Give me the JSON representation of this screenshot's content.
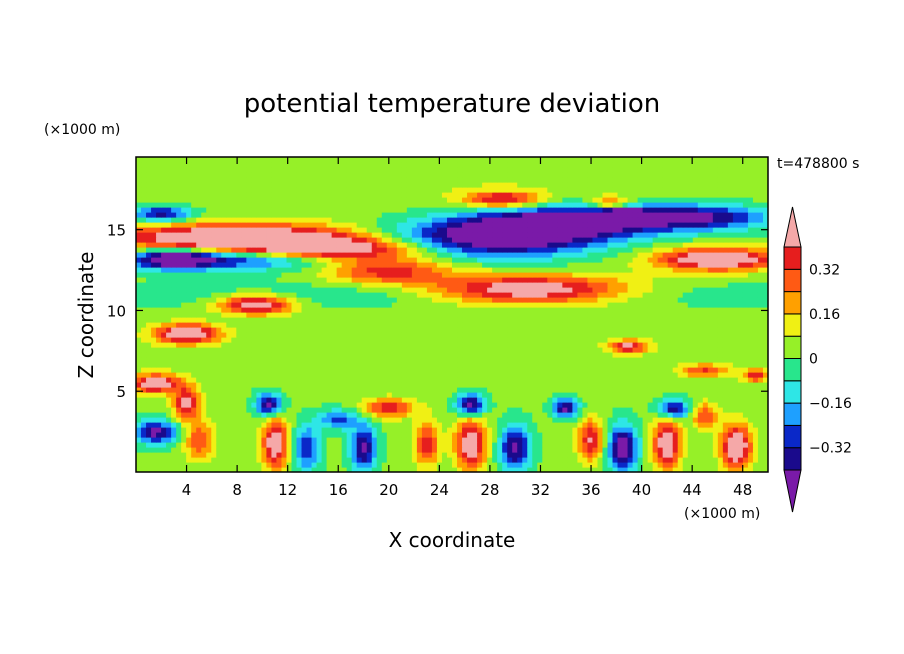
{
  "chart_data": {
    "type": "heatmap",
    "title": "potential temperature deviation",
    "xlabel": "X coordinate",
    "ylabel": "Z coordinate",
    "x_unit": "(×1000 m)",
    "y_unit": "(×1000 m)",
    "time_label": "t=478800 s",
    "xlim": [
      0,
      50
    ],
    "ylim": [
      0,
      19.5
    ],
    "x_ticks": [
      4,
      8,
      12,
      16,
      20,
      24,
      28,
      32,
      36,
      40,
      44,
      48
    ],
    "x_tick_labels": [
      "4",
      "8",
      "12",
      "16",
      "20",
      "24",
      "28",
      "32",
      "36",
      "40",
      "44",
      "48"
    ],
    "y_ticks": [
      5,
      10,
      15
    ],
    "y_tick_labels": [
      "5",
      "10",
      "15"
    ],
    "colorbar": {
      "levels": [
        -0.4,
        -0.32,
        -0.24,
        -0.16,
        -0.08,
        0,
        0.08,
        0.16,
        0.24,
        0.32,
        0.4
      ],
      "tick_labels": [
        {
          "value": 0.32,
          "label": "0.32"
        },
        {
          "value": 0.16,
          "label": "0.16"
        },
        {
          "value": 0,
          "label": "0"
        },
        {
          "value": -0.16,
          "label": "−0.16"
        },
        {
          "value": -0.32,
          "label": "−0.32"
        }
      ],
      "under_color": "#7a1aa8",
      "over_color": "#f5a8a8",
      "colors": [
        "#1a0a8c",
        "#0a28c8",
        "#1ea0ff",
        "#2ee6e6",
        "#28e68c",
        "#96f028",
        "#f0f014",
        "#ffa000",
        "#ff5a14",
        "#e61e1e"
      ]
    },
    "field_blobs": [
      {
        "x": 25,
        "y": 18,
        "rx": 30,
        "ry": 2,
        "v": 0.05
      },
      {
        "x": 8,
        "y": 14.5,
        "rx": 10,
        "ry": 0.9,
        "v": 0.6
      },
      {
        "x": 15,
        "y": 13.8,
        "rx": 8,
        "ry": 0.7,
        "v": 0.5
      },
      {
        "x": 20,
        "y": 12.5,
        "rx": 5,
        "ry": 0.8,
        "v": 0.35
      },
      {
        "x": 8,
        "y": 13.3,
        "rx": 8,
        "ry": 0.7,
        "v": -0.45
      },
      {
        "x": 3,
        "y": 13.2,
        "rx": 3,
        "ry": 0.6,
        "v": -0.42
      },
      {
        "x": 28,
        "y": 14.5,
        "rx": 8,
        "ry": 1.2,
        "v": -0.55
      },
      {
        "x": 34,
        "y": 15.5,
        "rx": 7,
        "ry": 1.0,
        "v": -0.5
      },
      {
        "x": 44,
        "y": 15.8,
        "rx": 6,
        "ry": 0.8,
        "v": -0.45
      },
      {
        "x": 2,
        "y": 16,
        "rx": 2.5,
        "ry": 0.5,
        "v": -0.4
      },
      {
        "x": 31,
        "y": 11.3,
        "rx": 8,
        "ry": 0.9,
        "v": 0.55
      },
      {
        "x": 46,
        "y": 13.2,
        "rx": 5,
        "ry": 0.7,
        "v": 0.55
      },
      {
        "x": 29,
        "y": 16.9,
        "rx": 3,
        "ry": 0.5,
        "v": 0.4
      },
      {
        "x": 37.5,
        "y": 16.7,
        "rx": 1.5,
        "ry": 0.4,
        "v": 0.3
      },
      {
        "x": 38.5,
        "y": 16.0,
        "rx": 1.5,
        "ry": 0.4,
        "v": -0.35
      },
      {
        "x": 4,
        "y": 8.6,
        "rx": 2.5,
        "ry": 0.6,
        "v": 0.55
      },
      {
        "x": 9.5,
        "y": 10.4,
        "rx": 3,
        "ry": 0.6,
        "v": 0.5
      },
      {
        "x": 39,
        "y": 7.8,
        "rx": 1.5,
        "ry": 0.4,
        "v": 0.4
      },
      {
        "x": 45,
        "y": 6.3,
        "rx": 2,
        "ry": 0.4,
        "v": 0.3
      },
      {
        "x": 49,
        "y": 6.0,
        "rx": 1,
        "ry": 0.4,
        "v": 0.35
      },
      {
        "x": 1.5,
        "y": 5.5,
        "rx": 2,
        "ry": 0.6,
        "v": 0.5
      },
      {
        "x": 4,
        "y": 4.3,
        "rx": 1,
        "ry": 1.0,
        "v": 0.45
      },
      {
        "x": 25,
        "y": 11.0,
        "rx": 30,
        "ry": 0.8,
        "v": -0.1
      },
      {
        "x": 25,
        "y": 7.5,
        "rx": 30,
        "ry": 1.5,
        "v": 0.03
      },
      {
        "x": 10.5,
        "y": 4.2,
        "rx": 1.0,
        "ry": 0.7,
        "v": -0.48
      },
      {
        "x": 26.5,
        "y": 4.2,
        "rx": 1.1,
        "ry": 0.7,
        "v": -0.48
      },
      {
        "x": 34,
        "y": 4.0,
        "rx": 1.0,
        "ry": 0.6,
        "v": -0.45
      },
      {
        "x": 42.5,
        "y": 3.9,
        "rx": 1.2,
        "ry": 0.6,
        "v": -0.45
      },
      {
        "x": 11,
        "y": 1.8,
        "rx": 1.0,
        "ry": 1.6,
        "v": 0.5
      },
      {
        "x": 26.5,
        "y": 1.8,
        "rx": 1.2,
        "ry": 1.6,
        "v": 0.5
      },
      {
        "x": 42,
        "y": 1.8,
        "rx": 1.1,
        "ry": 1.6,
        "v": 0.5
      },
      {
        "x": 13.5,
        "y": 1.5,
        "rx": 1.0,
        "ry": 1.4,
        "v": -0.35
      },
      {
        "x": 18,
        "y": 1.5,
        "rx": 1.0,
        "ry": 1.4,
        "v": -0.45
      },
      {
        "x": 23,
        "y": 1.8,
        "rx": 1.0,
        "ry": 1.4,
        "v": 0.35
      },
      {
        "x": 30,
        "y": 1.5,
        "rx": 1.2,
        "ry": 1.4,
        "v": -0.45
      },
      {
        "x": 36,
        "y": 2.0,
        "rx": 1.0,
        "ry": 1.3,
        "v": 0.4
      },
      {
        "x": 38.5,
        "y": 1.5,
        "rx": 1.2,
        "ry": 1.4,
        "v": -0.5
      },
      {
        "x": 47.5,
        "y": 1.6,
        "rx": 1.2,
        "ry": 1.4,
        "v": 0.55
      },
      {
        "x": 1.5,
        "y": 2.5,
        "rx": 1.8,
        "ry": 0.7,
        "v": -0.45
      },
      {
        "x": 5,
        "y": 2.0,
        "rx": 1.2,
        "ry": 1.2,
        "v": 0.3
      },
      {
        "x": 20,
        "y": 4.0,
        "rx": 2.0,
        "ry": 0.6,
        "v": 0.35
      },
      {
        "x": 16,
        "y": 3.3,
        "rx": 1.5,
        "ry": 0.6,
        "v": -0.3
      },
      {
        "x": 45,
        "y": 3.5,
        "rx": 1.0,
        "ry": 0.8,
        "v": 0.3
      }
    ]
  }
}
